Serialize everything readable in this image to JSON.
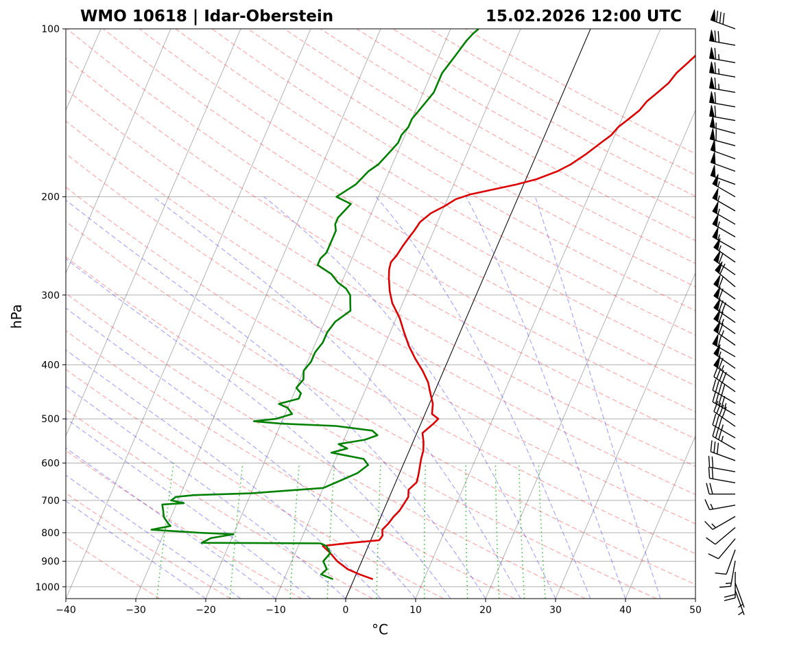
{
  "header": {
    "station": "WMO 10618 | Idar-Oberstein",
    "datetime": "15.02.2026 12:00 UTC"
  },
  "chart_data": {
    "type": "line",
    "subtype": "skew-t log-p diagram",
    "xlabel": "°C",
    "ylabel": "hPa",
    "xlim": [
      -40,
      50
    ],
    "ylim": [
      1050,
      100
    ],
    "y_scale": "log",
    "x_ticks": [
      -40,
      -30,
      -20,
      -10,
      0,
      10,
      20,
      30,
      40,
      50
    ],
    "x_tick_labels": [
      "−40",
      "−30",
      "−20",
      "−10",
      "0",
      "10",
      "20",
      "30",
      "40",
      "50"
    ],
    "y_ticks": [
      100,
      200,
      300,
      400,
      500,
      600,
      700,
      800,
      900,
      1000
    ],
    "y_tick_labels": [
      "100",
      "200",
      "300",
      "400",
      "500",
      "600",
      "700",
      "800",
      "900",
      "1000"
    ],
    "grid": true,
    "background_lines": {
      "isotherms_color": "#000000",
      "dry_adiabats_color": "#ff0000",
      "moist_adiabats_color": "#0000ff",
      "mixing_ratio_color": "#00aa00",
      "zero_isotherm_color": "#000000"
    },
    "series": [
      {
        "color": "#dd0000",
        "pressure": [
          969,
          950,
          930,
          900,
          870,
          845,
          835,
          825,
          810,
          790,
          770,
          750,
          730,
          710,
          690,
          670,
          650,
          630,
          610,
          590,
          570,
          550,
          530,
          510,
          500,
          490,
          470,
          450,
          430,
          410,
          390,
          370,
          350,
          330,
          310,
          295,
          280,
          270,
          262,
          255,
          245,
          238,
          230,
          222,
          214,
          208,
          202,
          198,
          194,
          190,
          186,
          180,
          175,
          168,
          160,
          155,
          150,
          145,
          140,
          135,
          130,
          125,
          120,
          115,
          110,
          105,
          102,
          100
        ],
        "temperature": [
          2.7,
          0.5,
          -1.5,
          -3.5,
          -5.0,
          -6.5,
          -3.0,
          1.2,
          1.4,
          1.0,
          1.5,
          1.8,
          2.3,
          2.5,
          2.7,
          2.3,
          3.0,
          2.8,
          2.5,
          2.2,
          2.0,
          1.5,
          0.8,
          1.8,
          2.2,
          1.0,
          0.5,
          -0.5,
          -1.5,
          -3.0,
          -4.8,
          -6.5,
          -8.0,
          -9.5,
          -11.5,
          -12.6,
          -13.5,
          -14.0,
          -14.2,
          -13.8,
          -13.5,
          -13.2,
          -12.8,
          -12.5,
          -11.5,
          -10.0,
          -8.8,
          -7.0,
          -4.0,
          -1.0,
          1.5,
          4.0,
          5.5,
          7.0,
          8.5,
          9.5,
          10.0,
          11.0,
          12.0,
          12.5,
          13.5,
          14.5,
          15.0,
          16.0,
          17.0,
          18.0,
          19.0,
          20.0
        ]
      },
      {
        "color": "#008000",
        "pressure": [
          969,
          950,
          930,
          900,
          870,
          845,
          836,
          834,
          818,
          805,
          800,
          790,
          778,
          770,
          750,
          730,
          712,
          708,
          700,
          690,
          685,
          680,
          665,
          645,
          625,
          605,
          590,
          575,
          565,
          555,
          545,
          535,
          525,
          515,
          510,
          505,
          500,
          490,
          478,
          470,
          460,
          450,
          440,
          425,
          410,
          395,
          380,
          365,
          350,
          335,
          320,
          310,
          300,
          292,
          285,
          275,
          265,
          258,
          252,
          245,
          238,
          230,
          224,
          218,
          212,
          206,
          200,
          195,
          190,
          185,
          180,
          175,
          170,
          165,
          160,
          155,
          150,
          145,
          140,
          135,
          130,
          125,
          120,
          115,
          110,
          105,
          102,
          100
        ],
        "dewpoint": [
          -3.0,
          -5.0,
          -4.5,
          -5.5,
          -5.0,
          -6.0,
          -7.0,
          -24.0,
          -23.0,
          -20.0,
          -25.0,
          -32.0,
          -29.5,
          -30.0,
          -31.0,
          -31.5,
          -32.0,
          -29.0,
          -31.0,
          -30.5,
          -28.0,
          -20.0,
          -10.0,
          -8.0,
          -6.0,
          -5.0,
          -6.0,
          -11.0,
          -9.0,
          -10.5,
          -7.0,
          -5.5,
          -6.5,
          -12.0,
          -20.0,
          -24.0,
          -21.0,
          -19.0,
          -20.0,
          -21.5,
          -19.0,
          -19.0,
          -20.0,
          -19.5,
          -20.0,
          -19.5,
          -19.5,
          -19.0,
          -19.0,
          -18.5,
          -17.0,
          -17.5,
          -18.0,
          -19.0,
          -20.5,
          -22.0,
          -24.5,
          -24.5,
          -24.0,
          -24.0,
          -24.0,
          -24.0,
          -24.5,
          -24.5,
          -24.0,
          -23.5,
          -26.0,
          -25.0,
          -24.0,
          -23.5,
          -23.0,
          -22.0,
          -21.5,
          -21.0,
          -20.5,
          -20.5,
          -20.0,
          -20.0,
          -19.5,
          -19.0,
          -18.5,
          -18.5,
          -18.5,
          -18.0,
          -17.5,
          -17.0,
          -16.5,
          -16.0
        ]
      }
    ],
    "wind_barbs": {
      "pressure": [
        100,
        107,
        115,
        122,
        130,
        138,
        146,
        154,
        162,
        171,
        180,
        190,
        200,
        212,
        224,
        236,
        249,
        262,
        276,
        290,
        305,
        320,
        336,
        352,
        369,
        387,
        406,
        426,
        447,
        469,
        492,
        516,
        541,
        567,
        594,
        622,
        651,
        682,
        714,
        748,
        783,
        820,
        858,
        898,
        940,
        984,
        1015
      ],
      "speed_kt": [
        80,
        70,
        65,
        65,
        65,
        60,
        60,
        55,
        60,
        50,
        50,
        50,
        55,
        55,
        55,
        55,
        55,
        55,
        60,
        60,
        60,
        60,
        70,
        65,
        65,
        60,
        55,
        65,
        40,
        40,
        45,
        40,
        35,
        35,
        30,
        20,
        20,
        20,
        15,
        15,
        10,
        10,
        10,
        15,
        20,
        5,
        5
      ],
      "direction_deg": [
        290,
        280,
        280,
        280,
        280,
        280,
        280,
        285,
        285,
        290,
        290,
        290,
        300,
        300,
        300,
        300,
        300,
        305,
        305,
        310,
        305,
        305,
        305,
        305,
        305,
        300,
        305,
        305,
        305,
        300,
        300,
        305,
        300,
        300,
        290,
        280,
        280,
        270,
        260,
        240,
        230,
        220,
        200,
        190,
        180,
        160,
        160
      ]
    }
  }
}
